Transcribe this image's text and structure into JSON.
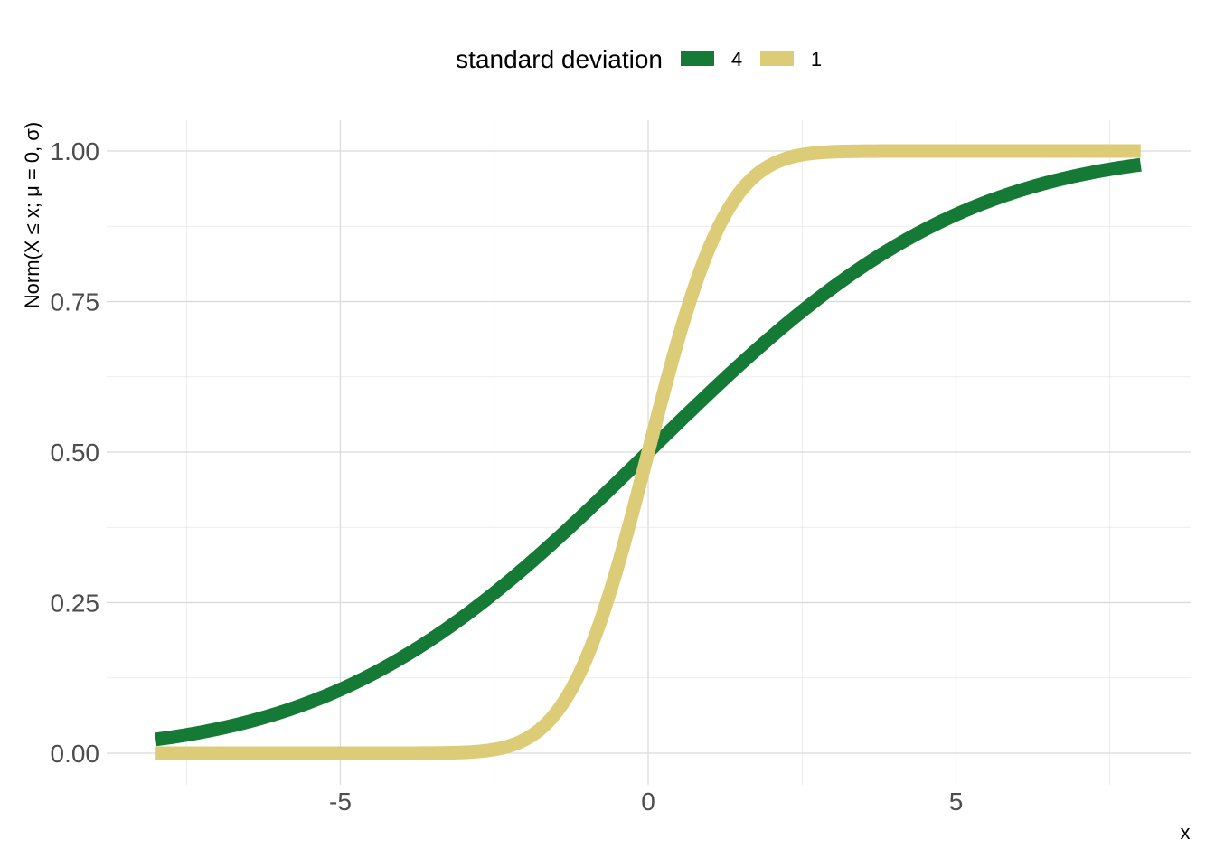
{
  "chart_data": {
    "type": "line",
    "xlabel": "x",
    "ylabel": "Norm(X ≤ x; μ = 0, σ)",
    "xlim": [
      -8,
      8
    ],
    "ylim": [
      0,
      1
    ],
    "x_ticks": [
      -5,
      0,
      5
    ],
    "x_tick_labels": [
      "-5",
      "0",
      "5"
    ],
    "y_ticks": [
      0,
      0.25,
      0.5,
      0.75,
      1
    ],
    "y_tick_labels": [
      "0.00",
      "0.25",
      "0.50",
      "0.75",
      "1.00"
    ],
    "grid": true,
    "legend": {
      "title": "standard deviation",
      "position": "top"
    },
    "series": [
      {
        "name": "4",
        "color": "#157A35",
        "x": [
          -8,
          -7,
          -6,
          -5,
          -4,
          -3,
          -2,
          -1,
          0,
          1,
          2,
          3,
          4,
          5,
          6,
          7,
          8
        ],
        "y": [
          0.023,
          0.04,
          0.067,
          0.106,
          0.159,
          0.227,
          0.309,
          0.401,
          0.5,
          0.599,
          0.691,
          0.773,
          0.841,
          0.894,
          0.933,
          0.96,
          0.977
        ]
      },
      {
        "name": "1",
        "color": "#DDCC77",
        "x": [
          -8,
          -4,
          -3,
          -2.5,
          -2,
          -1.5,
          -1,
          -0.5,
          0,
          0.5,
          1,
          1.5,
          2,
          2.5,
          3,
          4,
          8
        ],
        "y": [
          0.0,
          0.0,
          0.001,
          0.006,
          0.023,
          0.067,
          0.159,
          0.309,
          0.5,
          0.691,
          0.841,
          0.933,
          0.977,
          0.994,
          0.999,
          1.0,
          1.0
        ]
      }
    ]
  }
}
